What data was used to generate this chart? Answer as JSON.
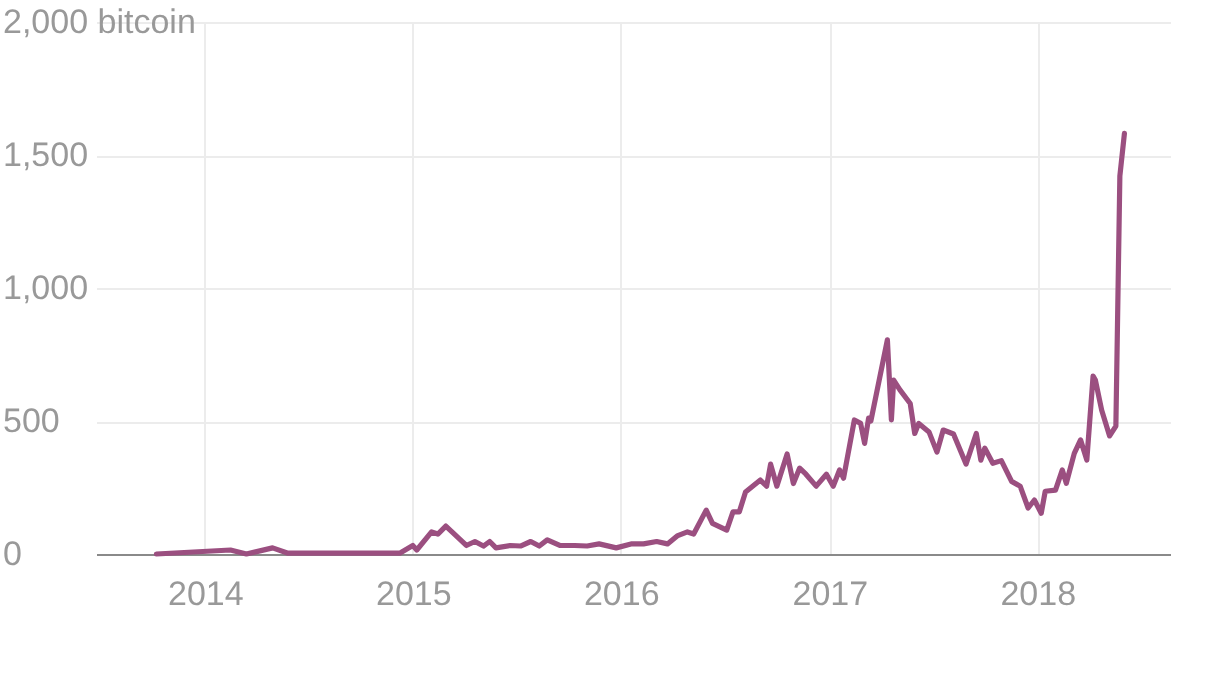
{
  "chart_data": {
    "type": "line",
    "x": [
      "2013-10-08",
      "2014-02-15",
      "2014-03-15",
      "2014-04-30",
      "2014-05-27",
      "2014-12-09",
      "2015-01-01",
      "2015-01-08",
      "2015-02-03",
      "2015-02-14",
      "2015-02-28",
      "2015-03-15",
      "2015-04-05",
      "2015-04-20",
      "2015-05-05",
      "2015-05-16",
      "2015-05-27",
      "2015-06-21",
      "2015-07-09",
      "2015-07-27",
      "2015-08-11",
      "2015-08-25",
      "2015-09-16",
      "2015-10-12",
      "2015-11-03",
      "2015-11-24",
      "2015-12-24",
      "2016-01-19",
      "2016-02-10",
      "2016-03-04",
      "2016-03-23",
      "2016-04-09",
      "2016-04-27",
      "2016-05-08",
      "2016-05-30",
      "2016-06-10",
      "2016-07-05",
      "2016-07-16",
      "2016-07-27",
      "2016-08-07",
      "2016-09-02",
      "2016-09-13",
      "2016-09-20",
      "2016-10-01",
      "2016-10-19",
      "2016-10-30",
      "2016-11-10",
      "2016-11-21",
      "2016-12-09",
      "2016-12-27",
      "2017-01-08",
      "2017-01-19",
      "2017-01-26",
      "2017-02-14",
      "2017-02-25",
      "2017-03-04",
      "2017-03-11",
      "2017-03-15",
      "2017-04-13",
      "2017-04-20",
      "2017-04-24",
      "2017-05-05",
      "2017-05-23",
      "2017-05-31",
      "2017-06-07",
      "2017-06-25",
      "2017-07-09",
      "2017-07-20",
      "2017-08-07",
      "2017-08-29",
      "2017-09-16",
      "2017-09-24",
      "2017-10-01",
      "2017-10-15",
      "2017-10-30",
      "2017-11-17",
      "2017-12-02",
      "2017-12-16",
      "2017-12-27",
      "2018-01-08",
      "2018-01-15",
      "2018-02-02",
      "2018-02-14",
      "2018-02-21",
      "2018-03-07",
      "2018-03-18",
      "2018-03-29",
      "2018-04-09",
      "2018-04-13",
      "2018-04-24",
      "2018-05-08",
      "2018-05-19",
      "2018-05-26",
      "2018-06-03"
    ],
    "values": [
      0,
      15,
      0,
      23,
      3,
      3,
      32,
      15,
      83,
      75,
      105,
      75,
      32,
      47,
      30,
      47,
      23,
      32,
      30,
      47,
      30,
      53,
      32,
      32,
      30,
      38,
      23,
      38,
      38,
      47,
      38,
      68,
      83,
      75,
      165,
      115,
      90,
      158,
      158,
      233,
      278,
      255,
      338,
      255,
      376,
      265,
      323,
      300,
      255,
      300,
      255,
      316,
      285,
      504,
      491,
      416,
      511,
      500,
      805,
      504,
      654,
      617,
      566,
      453,
      491,
      459,
      383,
      466,
      451,
      338,
      453,
      353,
      398,
      341,
      351,
      273,
      255,
      173,
      203,
      153,
      236,
      240,
      316,
      266,
      378,
      429,
      353,
      669,
      654,
      541,
      444,
      481,
      1421,
      1581
    ],
    "color": "#9b4f80",
    "xlim": [
      "2013-06-24",
      "2018-08-22"
    ],
    "ylim": [
      0,
      2000
    ],
    "xticks": [
      {
        "value": "2014",
        "label": "2014"
      },
      {
        "value": "2015",
        "label": "2015"
      },
      {
        "value": "2016",
        "label": "2016"
      },
      {
        "value": "2017",
        "label": "2017"
      },
      {
        "value": "2018",
        "label": "2018"
      }
    ],
    "yticks": [
      0,
      {
        "value": 500,
        "label": "500"
      },
      {
        "value": 1000,
        "label": "1,000"
      },
      {
        "value": 1500,
        "label": "1,500"
      },
      {
        "value": 2000,
        "label": "2,000 bitcoin"
      }
    ],
    "grid": true
  }
}
